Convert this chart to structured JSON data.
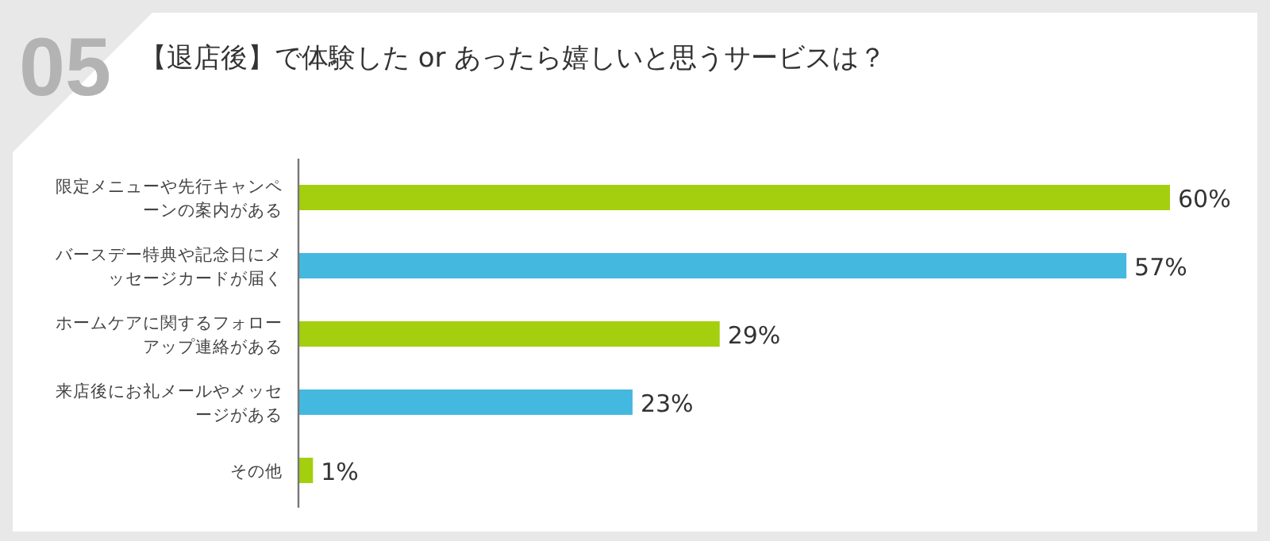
{
  "chart_data": {
    "type": "bar",
    "orientation": "horizontal",
    "title": "【退店後】で体験した or あったら嬉しいと思うサービスは？",
    "annotations": [
      "05"
    ],
    "categories": [
      "限定メニューや先行キャンペーンの案内がある",
      "バースデー特典や記念日にメッセージカードが届く",
      "ホームケアに関するフォローアップ連絡がある",
      "来店後にお礼メールやメッセージがある",
      "その他"
    ],
    "values": [
      60,
      57,
      29,
      23,
      1
    ],
    "value_labels": [
      "60%",
      "57%",
      "29%",
      "23%",
      "1%"
    ],
    "colors": [
      "#a4cf0f",
      "#45b8e0",
      "#a4cf0f",
      "#45b8e0",
      "#a4cf0f"
    ],
    "xlim": [
      0,
      60
    ]
  }
}
